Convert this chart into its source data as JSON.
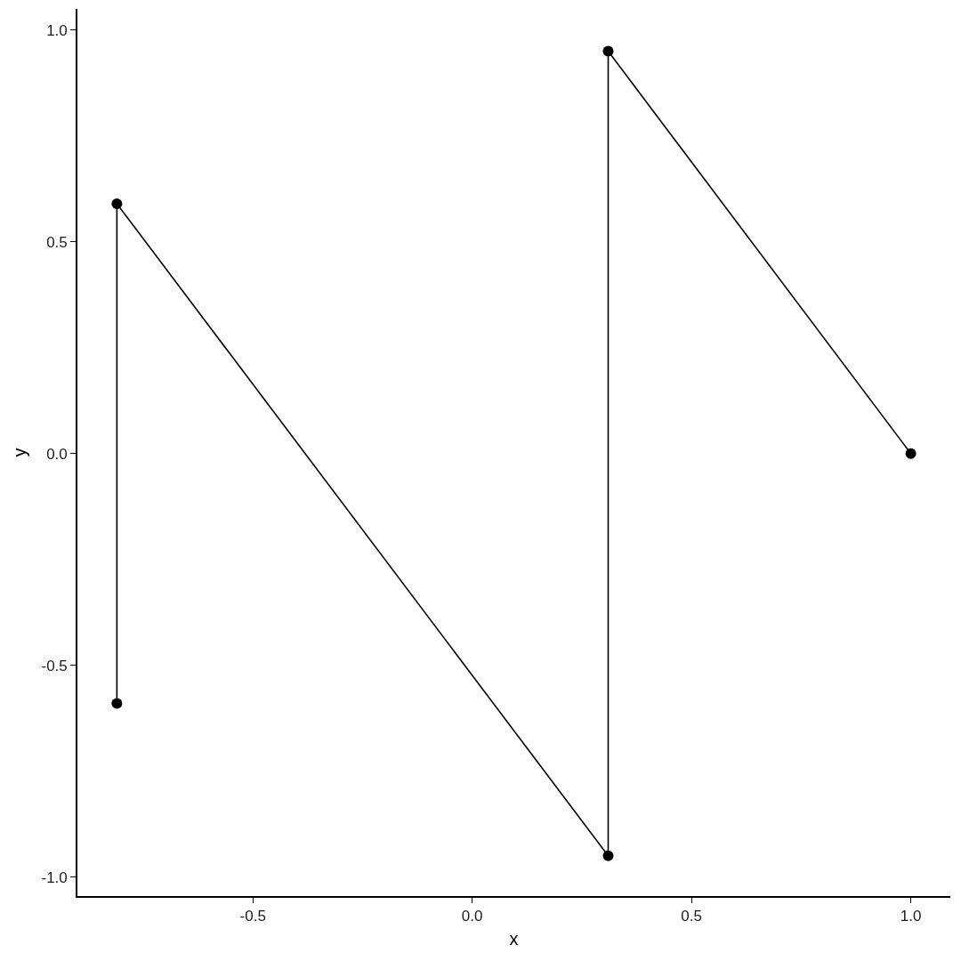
{
  "chart_data": {
    "type": "line",
    "xlabel": "x",
    "ylabel": "y",
    "x": [
      -0.81,
      -0.81,
      0.31,
      0.31,
      1.0
    ],
    "series": [
      {
        "color": "#000000",
        "values": [
          -0.59,
          0.59,
          -0.95,
          0.95,
          0.0
        ]
      }
    ],
    "xlim": [
      -0.9,
      1.09
    ],
    "ylim": [
      -1.045,
      1.05
    ],
    "xticks": [
      {
        "value": -0.5,
        "label": "-0.5"
      },
      {
        "value": 0,
        "label": "0.0"
      },
      {
        "value": 0.5,
        "label": "0.5"
      },
      {
        "value": 1,
        "label": "1.0"
      }
    ],
    "yticks": [
      {
        "value": -1,
        "label": "-1.0"
      },
      {
        "value": -0.5,
        "label": "-0.5"
      },
      {
        "value": 0,
        "label": "0.0"
      },
      {
        "value": 0.5,
        "label": "0.5"
      },
      {
        "value": 1,
        "label": "1.0"
      }
    ],
    "grid": false,
    "marker": "circle",
    "line_style": "solid"
  }
}
